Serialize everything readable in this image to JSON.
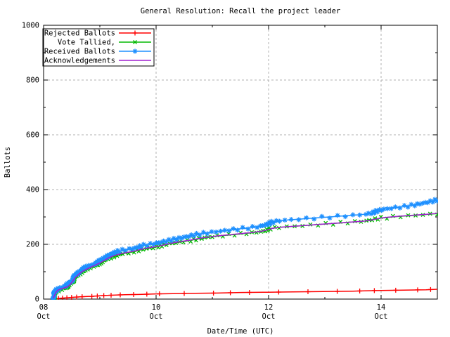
{
  "chart_data": {
    "type": "line",
    "title": "General Resolution: Recall the project leader",
    "xlabel": "Date/Time (UTC)",
    "ylabel": "Ballots",
    "ylim": [
      0,
      1000
    ],
    "xlim_days": [
      0,
      7
    ],
    "grid": true,
    "legend_position": "top-left",
    "y_ticks": [
      0,
      200,
      400,
      600,
      800,
      1000
    ],
    "y_minor_ticks": [
      100,
      300,
      500,
      700,
      900
    ],
    "x_ticks": [
      {
        "day": 0,
        "label": [
          "08",
          "Oct"
        ]
      },
      {
        "day": 2,
        "label": [
          "10",
          "Oct"
        ]
      },
      {
        "day": 4,
        "label": [
          "12",
          "Oct"
        ]
      },
      {
        "day": 6,
        "label": [
          "14",
          "Oct"
        ]
      }
    ],
    "x_minor_tick_days": [
      1,
      3,
      5,
      7
    ],
    "series": [
      {
        "name": "Rejected Ballots",
        "color": "#ff0000",
        "marker": "plus",
        "marker_value_step": 1.3,
        "points": [
          [
            0.2,
            1
          ],
          [
            0.3,
            3
          ],
          [
            0.42,
            5
          ],
          [
            0.55,
            7
          ],
          [
            0.7,
            9
          ],
          [
            0.85,
            10
          ],
          [
            1.0,
            12
          ],
          [
            1.2,
            14
          ],
          [
            1.45,
            16
          ],
          [
            1.7,
            17
          ],
          [
            2.0,
            19
          ],
          [
            2.3,
            20
          ],
          [
            2.7,
            21
          ],
          [
            3.1,
            22
          ],
          [
            3.5,
            24
          ],
          [
            3.9,
            25
          ],
          [
            4.3,
            26
          ],
          [
            4.7,
            27
          ],
          [
            5.1,
            28
          ],
          [
            5.5,
            29
          ],
          [
            5.9,
            31
          ],
          [
            6.2,
            32
          ],
          [
            6.5,
            33
          ],
          [
            6.8,
            34
          ],
          [
            7.0,
            36
          ]
        ]
      },
      {
        "name": "Vote Tallied,",
        "color": "#00b800",
        "marker": "cross",
        "marker_value_step": 2,
        "points": [
          [
            0.17,
            0
          ],
          [
            0.19,
            9
          ],
          [
            0.21,
            20
          ],
          [
            0.24,
            29
          ],
          [
            0.28,
            34
          ],
          [
            0.35,
            38
          ],
          [
            0.41,
            42
          ],
          [
            0.45,
            48
          ],
          [
            0.49,
            57
          ],
          [
            0.54,
            72
          ],
          [
            0.59,
            85
          ],
          [
            0.65,
            95
          ],
          [
            0.72,
            104
          ],
          [
            0.8,
            112
          ],
          [
            0.88,
            119
          ],
          [
            0.96,
            127
          ],
          [
            1.04,
            135
          ],
          [
            1.12,
            145
          ],
          [
            1.2,
            153
          ],
          [
            1.28,
            159
          ],
          [
            1.37,
            164
          ],
          [
            1.46,
            168
          ],
          [
            1.56,
            171
          ],
          [
            1.66,
            176
          ],
          [
            1.76,
            182
          ],
          [
            1.9,
            187
          ],
          [
            2.0,
            190
          ],
          [
            2.15,
            198
          ],
          [
            2.3,
            204
          ],
          [
            2.45,
            209
          ],
          [
            2.6,
            214
          ],
          [
            2.75,
            220
          ],
          [
            2.9,
            225
          ],
          [
            3.05,
            229
          ],
          [
            3.25,
            233
          ],
          [
            3.45,
            237
          ],
          [
            3.65,
            241
          ],
          [
            3.85,
            246
          ],
          [
            3.95,
            251
          ],
          [
            4.05,
            258
          ],
          [
            4.2,
            262
          ],
          [
            4.4,
            265
          ],
          [
            4.6,
            268
          ],
          [
            4.8,
            271
          ],
          [
            5.0,
            274
          ],
          [
            5.2,
            277
          ],
          [
            5.4,
            280
          ],
          [
            5.6,
            283
          ],
          [
            5.75,
            286
          ],
          [
            5.88,
            291
          ],
          [
            6.0,
            296
          ],
          [
            6.2,
            300
          ],
          [
            6.4,
            303
          ],
          [
            6.6,
            306
          ],
          [
            6.8,
            309
          ],
          [
            7.0,
            312
          ]
        ]
      },
      {
        "name": "Received Ballots",
        "color": "#1e90ff",
        "marker": "star",
        "marker_value_step": 2,
        "points": [
          [
            0.16,
            2
          ],
          [
            0.18,
            14
          ],
          [
            0.2,
            26
          ],
          [
            0.23,
            34
          ],
          [
            0.27,
            40
          ],
          [
            0.33,
            44
          ],
          [
            0.39,
            47
          ],
          [
            0.43,
            53
          ],
          [
            0.47,
            61
          ],
          [
            0.51,
            72
          ],
          [
            0.56,
            86
          ],
          [
            0.61,
            97
          ],
          [
            0.67,
            106
          ],
          [
            0.74,
            114
          ],
          [
            0.82,
            122
          ],
          [
            0.9,
            129
          ],
          [
            0.98,
            137
          ],
          [
            1.05,
            146
          ],
          [
            1.12,
            156
          ],
          [
            1.2,
            164
          ],
          [
            1.28,
            171
          ],
          [
            1.36,
            176
          ],
          [
            1.45,
            180
          ],
          [
            1.55,
            183
          ],
          [
            1.65,
            189
          ],
          [
            1.75,
            195
          ],
          [
            1.88,
            199
          ],
          [
            2.0,
            203
          ],
          [
            2.15,
            211
          ],
          [
            2.3,
            218
          ],
          [
            2.45,
            224
          ],
          [
            2.6,
            230
          ],
          [
            2.75,
            237
          ],
          [
            2.9,
            242
          ],
          [
            3.05,
            246
          ],
          [
            3.25,
            251
          ],
          [
            3.45,
            256
          ],
          [
            3.65,
            260
          ],
          [
            3.85,
            265
          ],
          [
            3.95,
            272
          ],
          [
            4.05,
            281
          ],
          [
            4.2,
            286
          ],
          [
            4.35,
            289
          ],
          [
            4.55,
            292
          ],
          [
            4.75,
            295
          ],
          [
            4.95,
            298
          ],
          [
            5.15,
            301
          ],
          [
            5.35,
            304
          ],
          [
            5.55,
            307
          ],
          [
            5.72,
            310
          ],
          [
            5.85,
            315
          ],
          [
            5.95,
            322
          ],
          [
            6.05,
            328
          ],
          [
            6.2,
            333
          ],
          [
            6.4,
            338
          ],
          [
            6.6,
            344
          ],
          [
            6.8,
            352
          ],
          [
            6.92,
            358
          ],
          [
            7.0,
            363
          ]
        ]
      },
      {
        "name": "Acknowledgements",
        "color": "#a020d0",
        "marker": "none",
        "marker_value_step": 0,
        "points": [
          [
            0.17,
            3
          ],
          [
            0.2,
            16
          ],
          [
            0.22,
            25
          ],
          [
            0.25,
            32
          ],
          [
            0.3,
            37
          ],
          [
            0.37,
            41
          ],
          [
            0.43,
            46
          ],
          [
            0.47,
            53
          ],
          [
            0.51,
            63
          ],
          [
            0.56,
            78
          ],
          [
            0.62,
            90
          ],
          [
            0.68,
            100
          ],
          [
            0.75,
            108
          ],
          [
            0.83,
            116
          ],
          [
            0.91,
            123
          ],
          [
            0.99,
            131
          ],
          [
            1.07,
            140
          ],
          [
            1.15,
            150
          ],
          [
            1.23,
            157
          ],
          [
            1.31,
            162
          ],
          [
            1.4,
            167
          ],
          [
            1.5,
            171
          ],
          [
            1.6,
            175
          ],
          [
            1.7,
            180
          ],
          [
            1.8,
            185
          ],
          [
            1.92,
            189
          ],
          [
            2.05,
            193
          ],
          [
            2.2,
            201
          ],
          [
            2.35,
            207
          ],
          [
            2.5,
            212
          ],
          [
            2.65,
            217
          ],
          [
            2.8,
            223
          ],
          [
            2.95,
            227
          ],
          [
            3.1,
            231
          ],
          [
            3.3,
            235
          ],
          [
            3.5,
            239
          ],
          [
            3.7,
            243
          ],
          [
            3.88,
            248
          ],
          [
            3.98,
            253
          ],
          [
            4.08,
            259
          ],
          [
            4.25,
            263
          ],
          [
            4.45,
            266
          ],
          [
            4.65,
            269
          ],
          [
            4.85,
            272
          ],
          [
            5.05,
            275
          ],
          [
            5.25,
            278
          ],
          [
            5.45,
            281
          ],
          [
            5.65,
            284
          ],
          [
            5.78,
            287
          ],
          [
            5.9,
            292
          ],
          [
            6.02,
            297
          ],
          [
            6.22,
            301
          ],
          [
            6.42,
            304
          ],
          [
            6.62,
            307
          ],
          [
            6.82,
            310
          ],
          [
            7.0,
            313
          ]
        ]
      }
    ],
    "colors": {
      "grid": "#b0b0b0",
      "border": "#000000",
      "background": "#ffffff"
    }
  }
}
